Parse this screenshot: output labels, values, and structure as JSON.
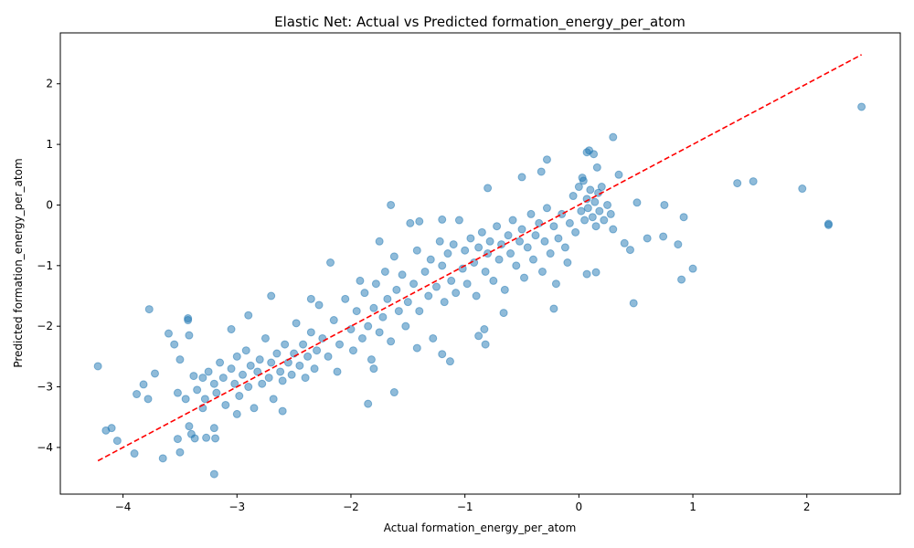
{
  "chart_data": {
    "type": "scatter",
    "title": "Elastic Net: Actual vs Predicted formation_energy_per_atom",
    "x_label": "Actual formation_energy_per_atom",
    "y_label": "Predicted formation_energy_per_atom",
    "xlim": [
      -4.55,
      2.82
    ],
    "ylim": [
      -4.77,
      2.84
    ],
    "xticks": [
      {
        "value": -4,
        "label": "−4"
      },
      {
        "value": -3,
        "label": "−3"
      },
      {
        "value": -2,
        "label": "−2"
      },
      {
        "value": -1,
        "label": "−1"
      },
      0,
      1,
      2
    ],
    "yticks": [
      {
        "value": -4,
        "label": "−4"
      },
      {
        "value": -3,
        "label": "−3"
      },
      {
        "value": -2,
        "label": "−2"
      },
      {
        "value": -1,
        "label": "−1"
      },
      0,
      1,
      2
    ],
    "grid": false,
    "series": [
      {
        "color": "#1f77b4",
        "x": [
          -4.22,
          -4.15,
          -4.1,
          -4.05,
          -3.9,
          -3.88,
          -3.82,
          -3.78,
          -3.77,
          -3.72,
          -3.65,
          -3.6,
          -3.55,
          -3.5,
          -3.52,
          -3.43,
          -3.43,
          -3.42,
          -3.42,
          -3.4,
          -3.37,
          -3.27,
          -3.2,
          -3.2,
          -3.19,
          -1.85,
          -1.62,
          -1.65,
          -2.18,
          -1.75,
          -0.28,
          0.3,
          0.09,
          0.07,
          0.13,
          1.39,
          1.53,
          1.96,
          2.19,
          2.19,
          2.48,
          0.9,
          1.0,
          0.48,
          0.87,
          0.92,
          0.75,
          0.74,
          0.51,
          0.45,
          0.6,
          0.4,
          0.35,
          -0.22,
          -0.66,
          -0.82,
          -0.83,
          -0.88,
          -1.13,
          -1.2,
          -1.42,
          -1.48,
          -1.4,
          -1.2,
          -0.8,
          -0.5,
          0.15,
          0.07,
          -3.35,
          -3.3,
          -3.28,
          -3.25,
          -3.2,
          -3.18,
          -3.15,
          -3.12,
          -3.1,
          -3.05,
          -3.02,
          -3.0,
          -2.98,
          -2.95,
          -2.92,
          -2.9,
          -2.88,
          -2.85,
          -2.82,
          -2.8,
          -2.78,
          -2.75,
          -2.72,
          -2.7,
          -2.68,
          -2.65,
          -2.62,
          -2.6,
          -2.58,
          -2.55,
          -2.52,
          -2.5,
          -2.48,
          -2.45,
          -2.42,
          -2.4,
          -2.38,
          -2.35,
          -2.32,
          -2.3,
          -3.05,
          -2.7,
          -2.9,
          -3.0,
          -2.6,
          -3.45,
          -3.5,
          -3.38,
          -3.52,
          -3.3,
          -2.25,
          -2.2,
          -2.15,
          -2.1,
          -2.05,
          -2.0,
          -1.98,
          -1.95,
          -1.9,
          -1.88,
          -1.85,
          -1.82,
          -1.8,
          -1.78,
          -1.75,
          -1.72,
          -1.7,
          -1.68,
          -1.65,
          -1.6,
          -1.58,
          -1.55,
          -1.52,
          -1.5,
          -2.12,
          -1.92,
          -2.28,
          -1.62,
          -1.8,
          -2.35,
          -1.45,
          -1.42,
          -1.4,
          -1.35,
          -1.32,
          -1.3,
          -1.28,
          -1.25,
          -1.22,
          -1.2,
          -1.18,
          -1.15,
          -1.12,
          -1.1,
          -1.08,
          -1.05,
          -1.02,
          -1.0,
          -0.98,
          -0.95,
          -0.92,
          -0.9,
          -0.88,
          -0.85,
          -0.82,
          -0.8,
          -0.78,
          -0.75,
          -0.72,
          -0.7,
          -0.68,
          -0.65,
          -0.62,
          -0.6,
          -0.58,
          -0.55,
          -0.52,
          -0.5,
          -0.48,
          -0.45,
          -0.42,
          -0.4,
          -0.38,
          -0.35,
          -0.32,
          -0.3,
          -0.28,
          -0.25,
          -0.22,
          -0.2,
          -0.18,
          -0.15,
          -0.12,
          -0.1,
          -0.08,
          -0.05,
          -0.03,
          0.0,
          0.02,
          0.04,
          0.05,
          0.07,
          0.08,
          0.1,
          0.12,
          0.14,
          0.15,
          0.17,
          0.18,
          0.2,
          0.22,
          0.25,
          0.28,
          0.3,
          0.03,
          0.16,
          -0.33
        ],
        "y": [
          -2.66,
          -3.72,
          -3.68,
          -3.89,
          -4.1,
          -3.12,
          -2.96,
          -3.2,
          -1.72,
          -2.78,
          -4.18,
          -2.12,
          -2.3,
          -4.08,
          -3.86,
          -1.87,
          -1.9,
          -2.15,
          -3.65,
          -3.78,
          -3.85,
          -3.84,
          -4.44,
          -3.68,
          -3.85,
          -3.28,
          -3.09,
          0.0,
          -0.95,
          -0.6,
          0.75,
          1.12,
          0.9,
          0.87,
          0.84,
          0.36,
          0.39,
          0.27,
          -0.31,
          -0.33,
          1.62,
          -1.23,
          -1.05,
          -1.62,
          -0.65,
          -0.2,
          0.0,
          -0.52,
          0.04,
          -0.74,
          -0.55,
          -0.63,
          0.5,
          -1.71,
          -1.78,
          -2.3,
          -2.05,
          -2.16,
          -2.58,
          -2.46,
          -2.36,
          -0.3,
          -0.27,
          -0.24,
          0.28,
          0.46,
          -1.11,
          -1.14,
          -3.05,
          -2.85,
          -3.2,
          -2.75,
          -2.95,
          -3.1,
          -2.6,
          -2.85,
          -3.3,
          -2.7,
          -2.95,
          -2.5,
          -3.15,
          -2.8,
          -2.4,
          -3.0,
          -2.65,
          -3.35,
          -2.75,
          -2.55,
          -2.95,
          -2.2,
          -2.85,
          -2.6,
          -3.2,
          -2.45,
          -2.75,
          -2.9,
          -2.3,
          -2.6,
          -2.8,
          -2.45,
          -1.95,
          -2.65,
          -2.3,
          -2.85,
          -2.5,
          -2.1,
          -2.7,
          -2.4,
          -2.05,
          -1.5,
          -1.82,
          -3.45,
          -3.4,
          -3.2,
          -2.55,
          -2.82,
          -3.1,
          -3.35,
          -2.2,
          -2.5,
          -1.9,
          -2.3,
          -1.55,
          -2.05,
          -2.4,
          -1.75,
          -2.2,
          -1.45,
          -2.0,
          -2.55,
          -1.7,
          -1.3,
          -2.1,
          -1.85,
          -1.1,
          -1.55,
          -2.25,
          -1.4,
          -1.75,
          -1.15,
          -2.0,
          -1.6,
          -2.75,
          -1.25,
          -1.65,
          -0.85,
          -2.7,
          -1.55,
          -1.3,
          -0.75,
          -1.75,
          -1.1,
          -1.5,
          -0.9,
          -2.2,
          -1.35,
          -0.6,
          -1.0,
          -1.6,
          -0.8,
          -1.25,
          -0.65,
          -1.45,
          -0.25,
          -1.05,
          -0.75,
          -1.3,
          -0.55,
          -0.95,
          -1.5,
          -0.7,
          -0.45,
          -1.1,
          -0.8,
          -0.6,
          -1.25,
          -0.35,
          -0.9,
          -0.65,
          -1.4,
          -0.5,
          -0.8,
          -0.25,
          -1.0,
          -0.6,
          -0.4,
          -1.2,
          -0.7,
          -0.15,
          -0.9,
          -0.5,
          -0.3,
          -1.1,
          -0.6,
          -0.05,
          -0.8,
          -0.35,
          -1.3,
          -0.55,
          -0.15,
          -0.7,
          -0.95,
          -0.3,
          0.15,
          -0.45,
          0.3,
          -0.1,
          0.4,
          -0.25,
          0.1,
          -0.05,
          0.25,
          -0.2,
          0.05,
          -0.35,
          0.2,
          -0.1,
          0.3,
          -0.25,
          0.0,
          -0.15,
          -0.4,
          0.45,
          0.62,
          0.55
        ]
      }
    ],
    "reference_line": {
      "x": [
        -4.22,
        2.48
      ],
      "y": [
        -4.22,
        2.48
      ],
      "color": "#ff0000",
      "dashed": true
    }
  }
}
